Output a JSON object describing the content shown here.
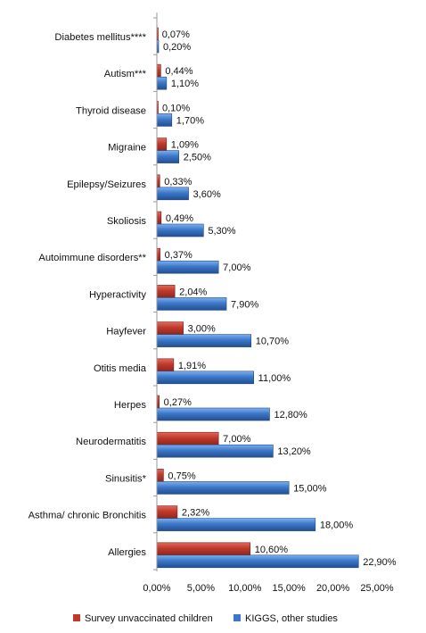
{
  "chart_data": {
    "type": "bar",
    "orientation": "horizontal",
    "categories": [
      "Diabetes mellitus****",
      "Autism***",
      "Thyroid disease",
      "Migraine",
      "Epilepsy/Seizures",
      "Skoliosis",
      "Autoimmune disorders**",
      "Hyperactivity",
      "Hayfever",
      "Otitis media",
      "Herpes",
      "Neurodermatitis",
      "Sinusitis*",
      "Asthma/ chronic Bronchitis",
      "Allergies"
    ],
    "series": [
      {
        "name": "Survey unvaccinated children",
        "color": "#c0392b",
        "values": [
          0.07,
          0.44,
          0.1,
          1.09,
          0.33,
          0.49,
          0.37,
          2.04,
          3.0,
          1.91,
          0.27,
          7.0,
          0.75,
          2.32,
          10.6
        ],
        "labels": [
          "0,07%",
          "0,44%",
          "0,10%",
          "1,09%",
          "0,33%",
          "0,49%",
          "0,37%",
          "2,04%",
          "3,00%",
          "1,91%",
          "0,27%",
          "7,00%",
          "0,75%",
          "2,32%",
          "10,60%"
        ]
      },
      {
        "name": "KIGGS, other studies",
        "color": "#3b78c9",
        "values": [
          0.2,
          1.1,
          1.7,
          2.5,
          3.6,
          5.3,
          7.0,
          7.9,
          10.7,
          11.0,
          12.8,
          13.2,
          15.0,
          18.0,
          22.9
        ],
        "labels": [
          "0,20%",
          "1,10%",
          "1,70%",
          "2,50%",
          "3,60%",
          "5,30%",
          "7,00%",
          "7,90%",
          "10,70%",
          "11,00%",
          "12,80%",
          "13,20%",
          "15,00%",
          "18,00%",
          "22,90%"
        ]
      }
    ],
    "xlim": [
      0,
      25
    ],
    "x_ticks": [
      0,
      5,
      10,
      15,
      20,
      25
    ],
    "x_tick_labels": [
      "0,00%",
      "5,00%",
      "10,00%",
      "15,00%",
      "20,00%",
      "25,00%"
    ],
    "grid": false,
    "legend_placement": "bottom",
    "title": "",
    "xlabel": "",
    "ylabel": ""
  }
}
